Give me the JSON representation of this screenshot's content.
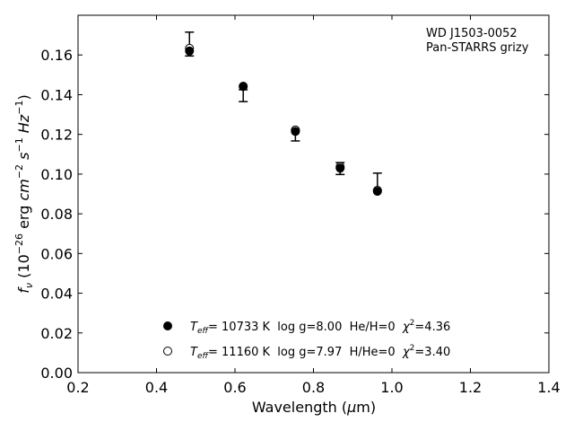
{
  "chart_data": {
    "type": "scatter",
    "xlabel": "Wavelength (μm)",
    "ylabel": "f_ν (10⁻²⁶ erg cm⁻² s⁻¹ Hz⁻¹)",
    "xlim": [
      0.2,
      1.4
    ],
    "ylim": [
      0.0,
      0.18
    ],
    "xticks": [
      "0.2",
      "0.4",
      "0.6",
      "0.8",
      "1.0",
      "1.2",
      "1.4"
    ],
    "yticks": [
      "0.00",
      "0.02",
      "0.04",
      "0.06",
      "0.08",
      "0.10",
      "0.12",
      "0.14",
      "0.16"
    ],
    "grid": false,
    "annotation": [
      "WD J1503-0052",
      "Pan-STARRS grizy"
    ],
    "observed": {
      "x": [
        0.484,
        0.621,
        0.754,
        0.868,
        0.963
      ],
      "y": [
        0.1655,
        0.1395,
        0.1193,
        0.1028,
        0.0962
      ],
      "yerr": [
        0.006,
        0.003,
        0.0026,
        0.003,
        0.0043
      ]
    },
    "series": [
      {
        "name": "T_eff= 10733 K  log g=8.00  He/H=0  χ²=4.36",
        "marker": "filled-circle",
        "x": [
          0.484,
          0.621,
          0.754,
          0.868,
          0.963
        ],
        "y": [
          0.162,
          0.1442,
          0.1215,
          0.103,
          0.0913
        ]
      },
      {
        "name": "T_eff= 11160 K  log g=7.97  H/He=0  χ²=3.40",
        "marker": "open-circle",
        "x": [
          0.484,
          0.621,
          0.754,
          0.868,
          0.963
        ],
        "y": [
          0.1633,
          0.1442,
          0.1222,
          0.1037,
          0.0918
        ]
      }
    ],
    "legend_position": "bottom-center"
  },
  "legend": {
    "items": [
      {
        "t": "T",
        "sub": "eff",
        "rest": "= 10733 K  log g=8.00  He/H=0  ",
        "chi": "χ",
        "sup": "2",
        "end": "=4.36"
      },
      {
        "t": "T",
        "sub": "eff",
        "rest": "= 11160 K  log g=7.97  H/He=0  ",
        "chi": "χ",
        "sup": "2",
        "end": "=3.40"
      }
    ]
  }
}
